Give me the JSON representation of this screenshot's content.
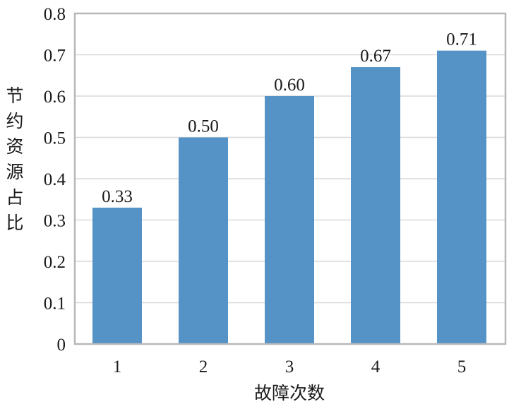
{
  "chart_data": {
    "type": "bar",
    "categories": [
      "1",
      "2",
      "3",
      "4",
      "5"
    ],
    "values": [
      0.33,
      0.5,
      0.6,
      0.67,
      0.71
    ],
    "data_labels": [
      "0.33",
      "0.50",
      "0.60",
      "0.67",
      "0.71"
    ],
    "title": "",
    "xlabel": "故障次数",
    "ylabel": "节约资源占比",
    "ylim": [
      0,
      0.8
    ],
    "yticks": [
      "0",
      "0.1",
      "0.2",
      "0.3",
      "0.4",
      "0.5",
      "0.6",
      "0.7",
      "0.8"
    ],
    "grid": true,
    "legend": "none",
    "colors": {
      "bar": "#5593c7",
      "grid": "#d9d9d9",
      "axis": "#b8b8bc"
    }
  }
}
